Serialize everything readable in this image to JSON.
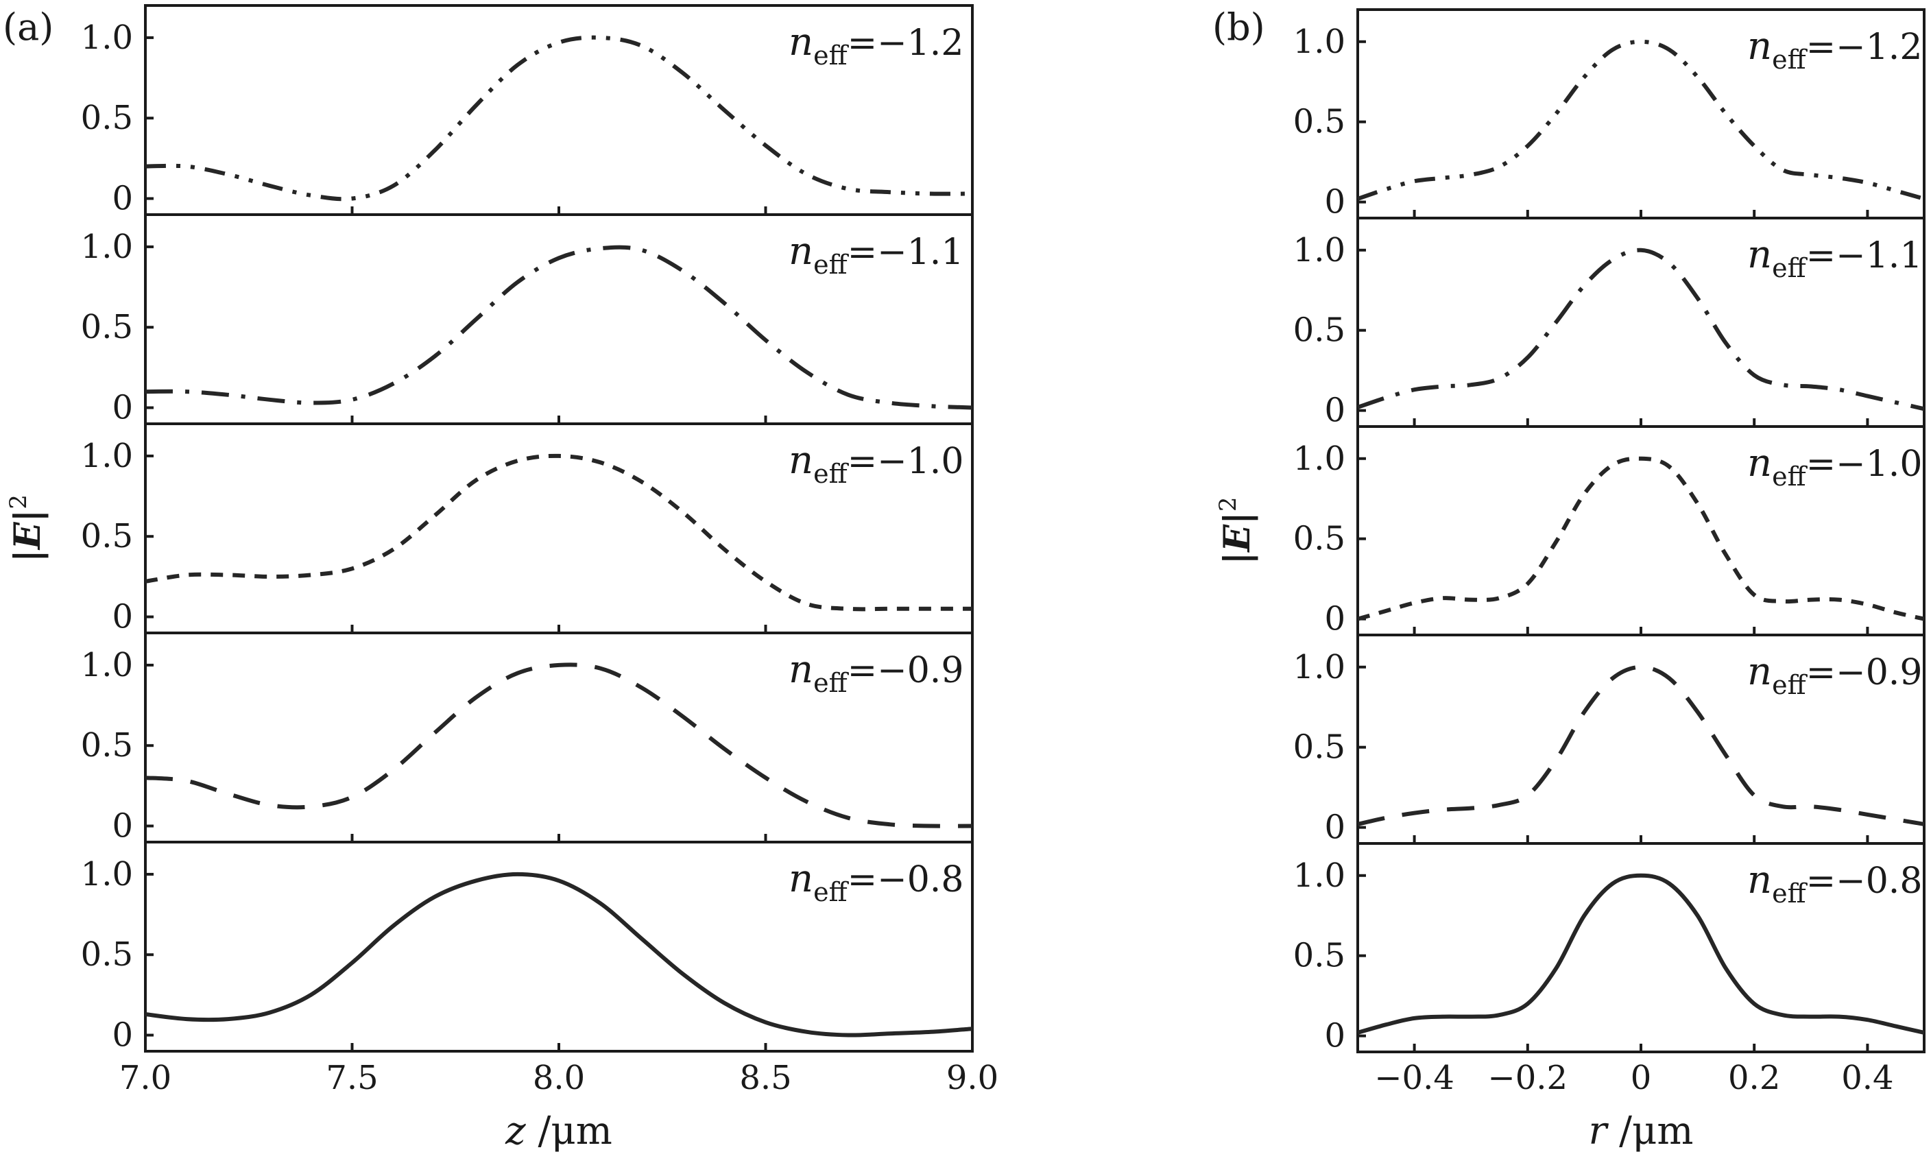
{
  "colors": {
    "axis": "#1a1a1a",
    "curve": "#262626"
  },
  "chart_data": [
    {
      "panel_label": "(a)",
      "type": "line",
      "ylabel_main": "|E|",
      "ylabel_sup": "2",
      "xlabel_var": "z",
      "xlabel_unit": " /μm",
      "xlim": [
        7.0,
        9.0
      ],
      "xticks": [
        "7.0",
        "7.5",
        "8.0",
        "8.5",
        "9.0"
      ],
      "ylim": [
        -0.1,
        1.2
      ],
      "yticks": [
        "0",
        "0.5",
        "1.0"
      ],
      "grid": false,
      "subplots": [
        {
          "label_symbol": "n",
          "label_sub": "eff",
          "label_value": "=−1.2",
          "dash": "dash-dot-dot",
          "x": [
            7.0,
            7.1,
            7.2,
            7.3,
            7.4,
            7.5,
            7.6,
            7.7,
            7.8,
            7.9,
            8.0,
            8.1,
            8.2,
            8.3,
            8.4,
            8.5,
            8.6,
            8.7,
            8.8,
            8.9,
            9.0
          ],
          "y": [
            0.2,
            0.2,
            0.15,
            0.08,
            0.02,
            0.0,
            0.08,
            0.3,
            0.58,
            0.83,
            0.97,
            1.0,
            0.95,
            0.78,
            0.55,
            0.33,
            0.15,
            0.06,
            0.04,
            0.03,
            0.03
          ]
        },
        {
          "label_symbol": "n",
          "label_sub": "eff",
          "label_value": "=−1.1",
          "dash": "dash-dot",
          "x": [
            7.0,
            7.1,
            7.2,
            7.3,
            7.4,
            7.5,
            7.6,
            7.7,
            7.8,
            7.9,
            8.0,
            8.1,
            8.2,
            8.3,
            8.4,
            8.5,
            8.6,
            8.7,
            8.8,
            8.9,
            9.0
          ],
          "y": [
            0.1,
            0.1,
            0.08,
            0.05,
            0.03,
            0.05,
            0.15,
            0.32,
            0.55,
            0.78,
            0.93,
            0.99,
            0.98,
            0.85,
            0.65,
            0.42,
            0.22,
            0.08,
            0.03,
            0.01,
            0.0
          ]
        },
        {
          "label_symbol": "n",
          "label_sub": "eff",
          "label_value": "=−1.0",
          "dash": "short-dash",
          "x": [
            7.0,
            7.1,
            7.2,
            7.3,
            7.4,
            7.5,
            7.6,
            7.7,
            7.8,
            7.9,
            8.0,
            8.1,
            8.2,
            8.3,
            8.4,
            8.5,
            8.6,
            8.7,
            8.8,
            8.9,
            9.0
          ],
          "y": [
            0.22,
            0.26,
            0.26,
            0.25,
            0.26,
            0.3,
            0.42,
            0.63,
            0.85,
            0.97,
            1.0,
            0.96,
            0.84,
            0.65,
            0.42,
            0.22,
            0.08,
            0.05,
            0.05,
            0.05,
            0.05
          ]
        },
        {
          "label_symbol": "n",
          "label_sub": "eff",
          "label_value": "=−0.9",
          "dash": "long-dash",
          "x": [
            7.0,
            7.1,
            7.2,
            7.3,
            7.4,
            7.5,
            7.6,
            7.7,
            7.8,
            7.9,
            8.0,
            8.1,
            8.2,
            8.3,
            8.4,
            8.5,
            8.6,
            8.7,
            8.8,
            8.9,
            9.0
          ],
          "y": [
            0.3,
            0.28,
            0.2,
            0.13,
            0.12,
            0.18,
            0.35,
            0.58,
            0.8,
            0.95,
            1.0,
            0.98,
            0.86,
            0.68,
            0.48,
            0.3,
            0.15,
            0.05,
            0.01,
            0.0,
            0.0
          ]
        },
        {
          "label_symbol": "n",
          "label_sub": "eff",
          "label_value": "=−0.8",
          "dash": "solid",
          "x": [
            7.0,
            7.1,
            7.2,
            7.3,
            7.4,
            7.5,
            7.6,
            7.7,
            7.8,
            7.9,
            8.0,
            8.1,
            8.2,
            8.3,
            8.4,
            8.5,
            8.6,
            8.7,
            8.8,
            8.9,
            9.0
          ],
          "y": [
            0.13,
            0.1,
            0.1,
            0.14,
            0.25,
            0.45,
            0.68,
            0.86,
            0.96,
            1.0,
            0.96,
            0.82,
            0.6,
            0.38,
            0.2,
            0.08,
            0.02,
            0.0,
            0.01,
            0.02,
            0.04
          ]
        }
      ]
    },
    {
      "panel_label": "(b)",
      "type": "line",
      "ylabel_main": "|E|",
      "ylabel_sup": "2",
      "xlabel_var": "r",
      "xlabel_unit": " /μm",
      "xlim": [
        -0.5,
        0.5
      ],
      "xticks": [
        "−0.4",
        "−0.2",
        "0",
        "0.2",
        "0.4"
      ],
      "ylim": [
        -0.1,
        1.2
      ],
      "yticks": [
        "0",
        "0.5",
        "1.0"
      ],
      "grid": false,
      "subplots": [
        {
          "label_symbol": "n",
          "label_sub": "eff",
          "label_value": "=−1.2",
          "dash": "dash-dot-dot",
          "x": [
            -0.5,
            -0.45,
            -0.4,
            -0.35,
            -0.3,
            -0.25,
            -0.2,
            -0.15,
            -0.1,
            -0.05,
            0.0,
            0.05,
            0.1,
            0.15,
            0.2,
            0.25,
            0.3,
            0.35,
            0.4,
            0.45,
            0.5
          ],
          "y": [
            0.02,
            0.08,
            0.13,
            0.15,
            0.17,
            0.22,
            0.35,
            0.55,
            0.78,
            0.95,
            1.0,
            0.95,
            0.78,
            0.55,
            0.35,
            0.2,
            0.17,
            0.15,
            0.12,
            0.07,
            0.02
          ]
        },
        {
          "label_symbol": "n",
          "label_sub": "eff",
          "label_value": "=−1.1",
          "dash": "dash-dot",
          "x": [
            -0.5,
            -0.45,
            -0.4,
            -0.35,
            -0.3,
            -0.25,
            -0.2,
            -0.15,
            -0.1,
            -0.05,
            0.0,
            0.05,
            0.1,
            0.15,
            0.2,
            0.25,
            0.3,
            0.35,
            0.4,
            0.45,
            0.5
          ],
          "y": [
            0.02,
            0.08,
            0.13,
            0.15,
            0.16,
            0.2,
            0.33,
            0.55,
            0.78,
            0.94,
            1.0,
            0.92,
            0.7,
            0.42,
            0.22,
            0.16,
            0.15,
            0.13,
            0.09,
            0.05,
            0.01
          ]
        },
        {
          "label_symbol": "n",
          "label_sub": "eff",
          "label_value": "=−1.0",
          "dash": "short-dash",
          "x": [
            -0.5,
            -0.45,
            -0.4,
            -0.35,
            -0.3,
            -0.25,
            -0.2,
            -0.15,
            -0.1,
            -0.05,
            0.0,
            0.05,
            0.1,
            0.15,
            0.2,
            0.25,
            0.3,
            0.35,
            0.4,
            0.45,
            0.5
          ],
          "y": [
            0.0,
            0.05,
            0.1,
            0.13,
            0.12,
            0.13,
            0.22,
            0.48,
            0.78,
            0.96,
            1.0,
            0.95,
            0.72,
            0.4,
            0.15,
            0.11,
            0.12,
            0.12,
            0.09,
            0.04,
            0.0
          ]
        },
        {
          "label_symbol": "n",
          "label_sub": "eff",
          "label_value": "=−0.9",
          "dash": "long-dash",
          "x": [
            -0.5,
            -0.45,
            -0.4,
            -0.35,
            -0.3,
            -0.25,
            -0.2,
            -0.15,
            -0.1,
            -0.05,
            0.0,
            0.05,
            0.1,
            0.15,
            0.2,
            0.25,
            0.3,
            0.35,
            0.4,
            0.45,
            0.5
          ],
          "y": [
            0.02,
            0.06,
            0.09,
            0.11,
            0.12,
            0.14,
            0.2,
            0.42,
            0.72,
            0.93,
            1.0,
            0.93,
            0.72,
            0.45,
            0.2,
            0.13,
            0.13,
            0.11,
            0.08,
            0.05,
            0.02
          ]
        },
        {
          "label_symbol": "n",
          "label_sub": "eff",
          "label_value": "=−0.8",
          "dash": "solid",
          "x": [
            -0.5,
            -0.45,
            -0.4,
            -0.35,
            -0.3,
            -0.25,
            -0.2,
            -0.15,
            -0.1,
            -0.05,
            0.0,
            0.05,
            0.1,
            0.15,
            0.2,
            0.25,
            0.3,
            0.35,
            0.4,
            0.45,
            0.5
          ],
          "y": [
            0.02,
            0.07,
            0.11,
            0.12,
            0.12,
            0.13,
            0.2,
            0.42,
            0.75,
            0.95,
            1.0,
            0.95,
            0.75,
            0.42,
            0.2,
            0.13,
            0.12,
            0.12,
            0.1,
            0.06,
            0.02
          ]
        }
      ]
    }
  ]
}
